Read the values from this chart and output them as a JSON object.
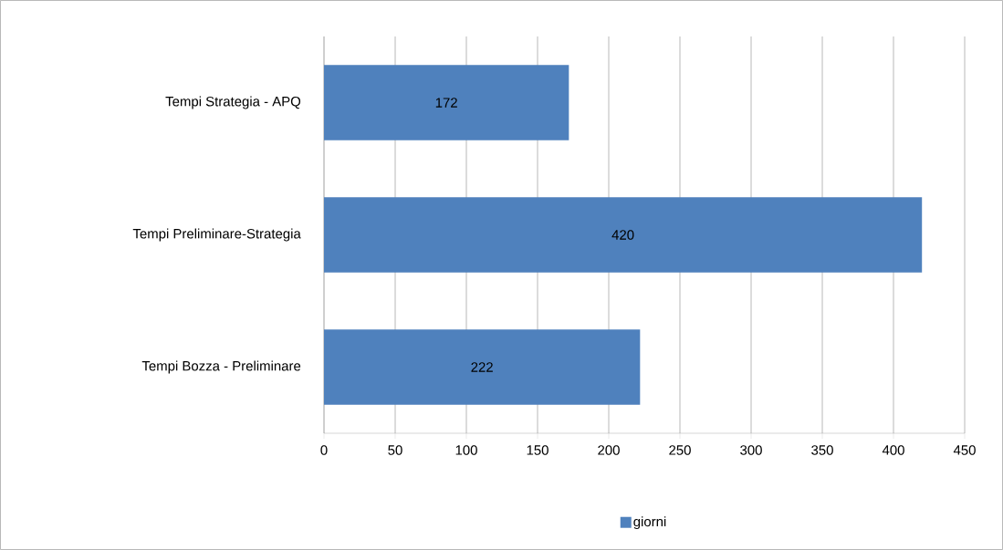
{
  "chart_data": {
    "type": "bar",
    "orientation": "horizontal",
    "categories": [
      "Tempi Strategia - APQ",
      "Tempi Preliminare-Strategia",
      "Tempi Bozza - Preliminare"
    ],
    "series": [
      {
        "name": "giorni",
        "color": "#4f81bd",
        "values": [
          172,
          420,
          222
        ]
      }
    ],
    "xlim": [
      0,
      450
    ],
    "xticks": [
      0,
      50,
      100,
      150,
      200,
      250,
      300,
      350,
      400,
      450
    ],
    "grid": "x",
    "legend": "bottom",
    "data_labels": true
  }
}
